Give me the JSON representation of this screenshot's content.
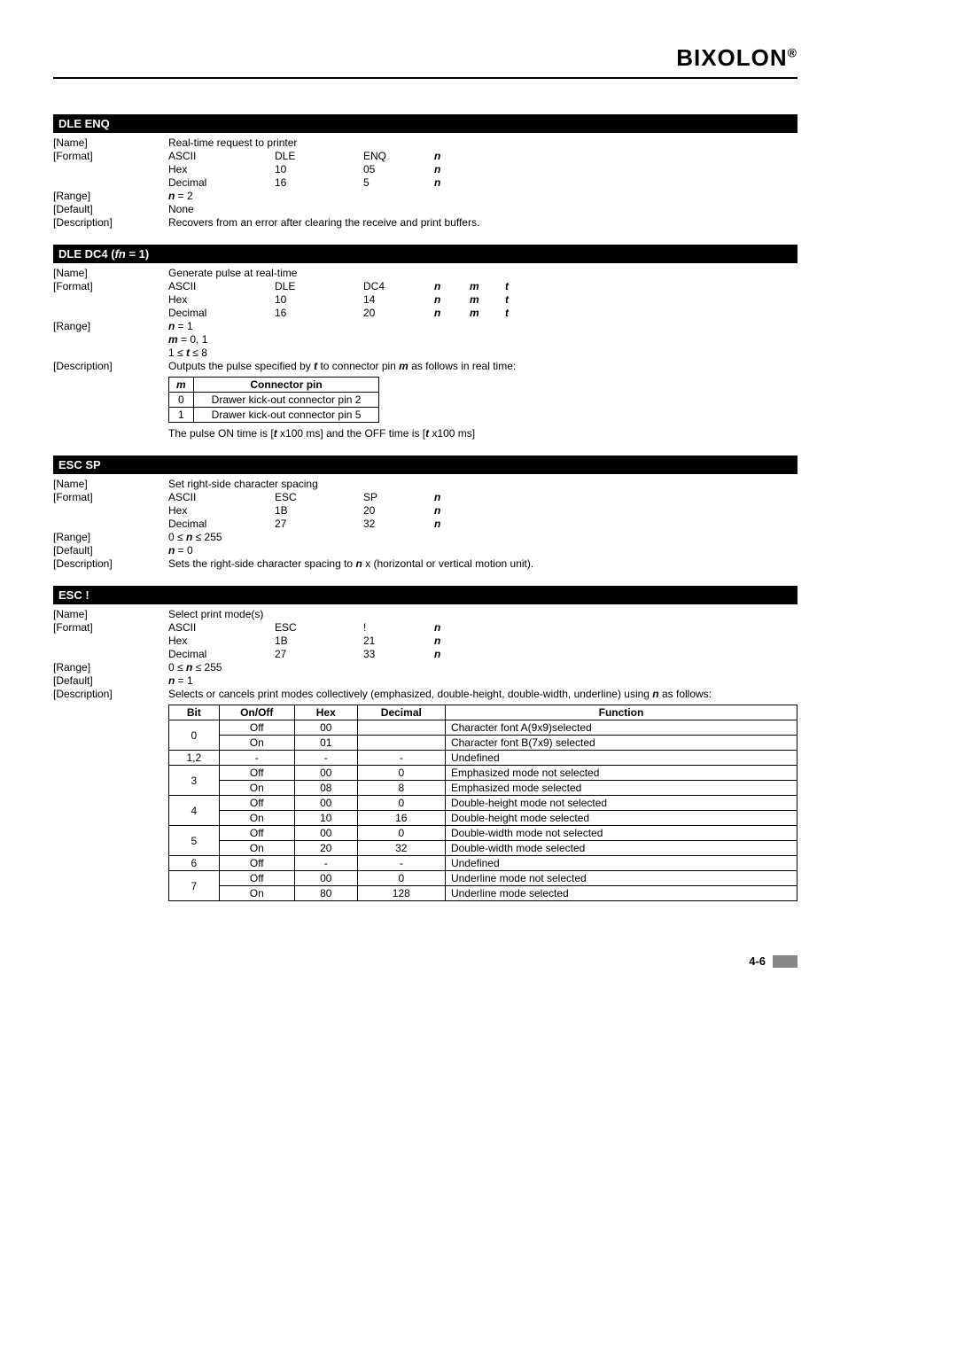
{
  "brand": "BIXOLON",
  "pageNumber": "4-6",
  "sections": [
    {
      "title": "DLE ENQ",
      "name": "Real-time request to printer",
      "format": [
        {
          "enc": "ASCII",
          "c1": "DLE",
          "c2": "ENQ",
          "p": [
            "n"
          ]
        },
        {
          "enc": "Hex",
          "c1": "10",
          "c2": "05",
          "p": [
            "n"
          ]
        },
        {
          "enc": "Decimal",
          "c1": "16",
          "c2": "5",
          "p": [
            "n"
          ]
        }
      ],
      "range": [
        "n = 2"
      ],
      "default": "None",
      "description": "Recovers from an error after clearing the receive and print buffers."
    },
    {
      "title_pre": "DLE DC4 (",
      "title_it": "fn",
      "title_post": " = 1)",
      "name": "Generate pulse at real-time",
      "format": [
        {
          "enc": "ASCII",
          "c1": "DLE",
          "c2": "DC4",
          "p": [
            "n",
            "m",
            "t"
          ]
        },
        {
          "enc": "Hex",
          "c1": "10",
          "c2": "14",
          "p": [
            "n",
            "m",
            "t"
          ]
        },
        {
          "enc": "Decimal",
          "c1": "16",
          "c2": "20",
          "p": [
            "n",
            "m",
            "t"
          ]
        }
      ],
      "range": [
        "n = 1",
        "m = 0, 1",
        "1 ≤ t ≤ 8"
      ],
      "description_pre": "Outputs the pulse specified by ",
      "description_b1": "t",
      "description_mid": " to connector pin ",
      "description_b2": "m",
      "description_post": " as follows in real time:",
      "connector_table": {
        "headers": [
          "m",
          "Connector pin"
        ],
        "rows": [
          [
            "0",
            "Drawer kick-out connector pin 2"
          ],
          [
            "1",
            "Drawer kick-out connector pin 5"
          ]
        ]
      },
      "footnote_pre": "The pulse ON time is [",
      "footnote_b1": "t",
      "footnote_mid": " x100 ms] and the OFF time is [",
      "footnote_b2": "t",
      "footnote_post": " x100 ms]"
    },
    {
      "title": "ESC SP",
      "name": "Set right-side character spacing",
      "format": [
        {
          "enc": "ASCII",
          "c1": "ESC",
          "c2": "SP",
          "p": [
            "n"
          ]
        },
        {
          "enc": "Hex",
          "c1": "1B",
          "c2": "20",
          "p": [
            "n"
          ]
        },
        {
          "enc": "Decimal",
          "c1": "27",
          "c2": "32",
          "p": [
            "n"
          ]
        }
      ],
      "range": [
        "0 ≤ n ≤ 255"
      ],
      "default": "n = 0",
      "description_pre": "Sets the right-side character spacing to ",
      "description_b1": "n",
      "description_post": " x (horizontal or vertical motion unit)."
    },
    {
      "title": "ESC !",
      "name": "Select print mode(s)",
      "format": [
        {
          "enc": "ASCII",
          "c1": "ESC",
          "c2": "!",
          "p": [
            "n"
          ]
        },
        {
          "enc": "Hex",
          "c1": "1B",
          "c2": "21",
          "p": [
            "n"
          ]
        },
        {
          "enc": "Decimal",
          "c1": "27",
          "c2": "33",
          "p": [
            "n"
          ]
        }
      ],
      "range": [
        "0 ≤ n ≤ 255"
      ],
      "default": "n = 1",
      "description_pre": "Selects or cancels print modes collectively (emphasized, double-height, double-width, underline) using ",
      "description_b1": "n",
      "description_post": " as follows:",
      "bit_table": {
        "headers": [
          "Bit",
          "On/Off",
          "Hex",
          "Decimal",
          "Function"
        ],
        "col_widths": [
          "8%",
          "12%",
          "10%",
          "14%",
          "56%"
        ],
        "rows": [
          {
            "bit": "0",
            "span": 2,
            "cells": [
              [
                "Off",
                "00",
                "",
                "Character font A(9x9)selected"
              ],
              [
                "On",
                "01",
                "",
                "Character font B(7x9) selected"
              ]
            ]
          },
          {
            "bit": "1,2",
            "span": 1,
            "cells": [
              [
                "-",
                "-",
                "-",
                "Undefined"
              ]
            ]
          },
          {
            "bit": "3",
            "span": 2,
            "cells": [
              [
                "Off",
                "00",
                "0",
                "Emphasized mode not selected"
              ],
              [
                "On",
                "08",
                "8",
                "Emphasized mode selected"
              ]
            ]
          },
          {
            "bit": "4",
            "span": 2,
            "cells": [
              [
                "Off",
                "00",
                "0",
                "Double-height mode not selected"
              ],
              [
                "On",
                "10",
                "16",
                "Double-height mode selected"
              ]
            ]
          },
          {
            "bit": "5",
            "span": 2,
            "cells": [
              [
                "Off",
                "00",
                "0",
                "Double-width mode not selected"
              ],
              [
                "On",
                "20",
                "32",
                "Double-width mode selected"
              ]
            ]
          },
          {
            "bit": "6",
            "span": 1,
            "cells": [
              [
                "Off",
                "-",
                "-",
                "Undefined"
              ]
            ]
          },
          {
            "bit": "7",
            "span": 2,
            "cells": [
              [
                "Off",
                "00",
                "0",
                "Underline mode not selected"
              ],
              [
                "On",
                "80",
                "128",
                "Underline mode selected"
              ]
            ]
          }
        ]
      }
    }
  ],
  "labels": {
    "name": "[Name]",
    "format": "[Format]",
    "range": "[Range]",
    "default": "[Default]",
    "description": "[Description]"
  }
}
